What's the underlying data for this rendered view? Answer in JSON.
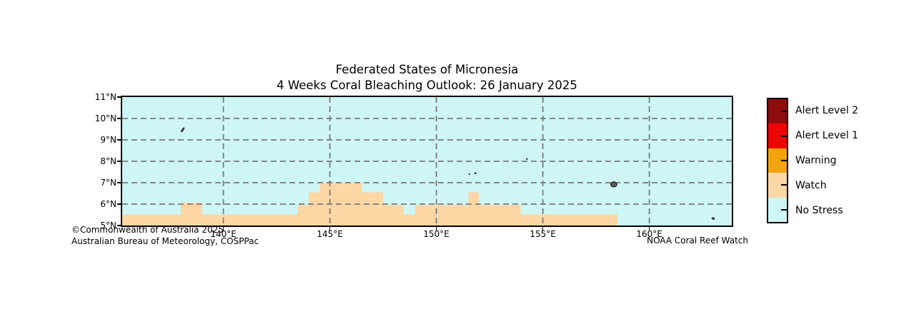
{
  "figure": {
    "title_line1": "Federated States of Micronesia",
    "title_line2": "4 Weeks Coral Bleaching Outlook: 26 January 2025"
  },
  "annotations": {
    "copyright_line1": "©Commonwealth of Australia 2025",
    "copyright_line2": "Australian Bureau of Meteorology, COSPPac",
    "credit_right": "NOAA Coral Reef Watch"
  },
  "legend": {
    "items": [
      {
        "label": "Alert Level 2",
        "color": "#8D0D0D"
      },
      {
        "label": "Alert Level 1",
        "color": "#EE0404"
      },
      {
        "label": "Warning",
        "color": "#F2A30D"
      },
      {
        "label": "Watch",
        "color": "#FFD7A4"
      },
      {
        "label": "No Stress",
        "color": "#CDF6F5"
      }
    ]
  },
  "chart_data": {
    "type": "heatmap",
    "description": "Categorical coral bleaching outlook map: Watch-level cells over a No Stress background, with small island marks",
    "lon_range": [
      135.25,
      163.87
    ],
    "lat_range": [
      5,
      11
    ],
    "x_ticks": [
      {
        "value": 140,
        "label": "140°E"
      },
      {
        "value": 145,
        "label": "145°E"
      },
      {
        "value": 150,
        "label": "150°E"
      },
      {
        "value": 155,
        "label": "155°E"
      },
      {
        "value": 160,
        "label": "160°E"
      }
    ],
    "y_ticks": [
      {
        "value": 11,
        "label": "11°N"
      },
      {
        "value": 10,
        "label": "10°N"
      },
      {
        "value": 9,
        "label": "9°N"
      },
      {
        "value": 8,
        "label": "8°N"
      },
      {
        "value": 7,
        "label": "7°N"
      },
      {
        "value": 6,
        "label": "6°N"
      },
      {
        "value": 5,
        "label": "5°N"
      }
    ],
    "grid_lons": [
      140,
      145,
      150,
      155,
      160
    ],
    "grid_lats": [
      6,
      7,
      8,
      9,
      10
    ],
    "lat_floor": 5,
    "watch_segments": [
      {
        "lon_from": 135.25,
        "lon_to": 138.0,
        "lat_top": 5.52
      },
      {
        "lon_from": 138.0,
        "lon_to": 139.0,
        "lat_top": 6.07
      },
      {
        "lon_from": 139.0,
        "lon_to": 143.5,
        "lat_top": 5.52
      },
      {
        "lon_from": 143.5,
        "lon_to": 144.0,
        "lat_top": 5.95
      },
      {
        "lon_from": 144.0,
        "lon_to": 144.55,
        "lat_top": 6.55
      },
      {
        "lon_from": 144.55,
        "lon_to": 146.5,
        "lat_top": 7.0
      },
      {
        "lon_from": 146.5,
        "lon_to": 147.5,
        "lat_top": 6.55
      },
      {
        "lon_from": 147.5,
        "lon_to": 148.45,
        "lat_top": 5.95
      },
      {
        "lon_from": 148.45,
        "lon_to": 149.0,
        "lat_top": 5.52
      },
      {
        "lon_from": 149.0,
        "lon_to": 151.5,
        "lat_top": 5.95
      },
      {
        "lon_from": 151.5,
        "lon_to": 152.0,
        "lat_top": 6.55
      },
      {
        "lon_from": 152.0,
        "lon_to": 153.95,
        "lat_top": 5.95
      },
      {
        "lon_from": 153.95,
        "lon_to": 158.5,
        "lat_top": 5.52
      }
    ],
    "islands": [
      {
        "lon": 138.09,
        "lat": 9.47,
        "rx": 1.6,
        "ry": 4.0,
        "rot": 35
      },
      {
        "lon": 151.55,
        "lat": 7.4,
        "rx": 1.2,
        "ry": 1.2,
        "rot": 0
      },
      {
        "lon": 151.83,
        "lat": 7.44,
        "rx": 1.6,
        "ry": 1.3,
        "rot": 0
      },
      {
        "lon": 154.25,
        "lat": 8.11,
        "rx": 1.4,
        "ry": 1.1,
        "rot": 0
      },
      {
        "lon": 158.33,
        "lat": 6.92,
        "rx": 4.3,
        "ry": 3.4,
        "rot": 0,
        "fill": "#5E5E5E",
        "stroke": "#2B2B2B"
      },
      {
        "lon": 163.0,
        "lat": 5.33,
        "rx": 2.3,
        "ry": 1.7,
        "rot": 20
      }
    ],
    "colors": {
      "no_stress": "#CDF6F5",
      "watch": "#FFD7A4",
      "grid": "#7A7A7A",
      "island": "#3A3A3A",
      "frame": "#000000"
    }
  }
}
